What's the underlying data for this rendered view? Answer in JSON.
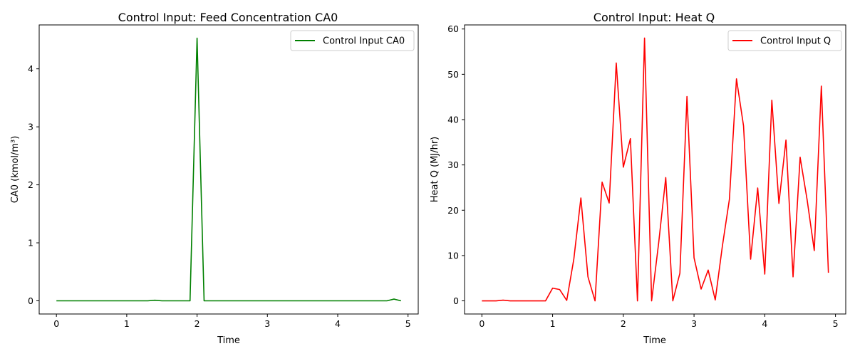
{
  "chart_data": [
    {
      "type": "line",
      "title": "Control Input: Feed Concentration CA0",
      "xlabel": "Time",
      "ylabel": "CA0 (kmol/m³)",
      "xlim": [
        -0.245,
        5.145
      ],
      "ylim": [
        -0.227,
        4.757
      ],
      "xticks": [
        "0",
        "1",
        "2",
        "3",
        "4",
        "5"
      ],
      "yticks": [
        "0",
        "1",
        "2",
        "3",
        "4"
      ],
      "legend": "top-right",
      "grid": false,
      "series": [
        {
          "name": "Control Input CA0",
          "color": "#008000",
          "x": [
            0,
            0.1,
            0.2,
            0.3,
            0.4,
            0.5,
            0.6,
            0.7,
            0.8,
            0.9,
            1.0,
            1.1,
            1.2,
            1.3,
            1.4,
            1.5,
            1.6,
            1.7,
            1.8,
            1.9,
            2.0,
            2.1,
            2.2,
            2.3,
            2.4,
            2.5,
            2.6,
            2.7,
            2.8,
            2.9,
            3.0,
            3.1,
            3.2,
            3.3,
            3.4,
            3.5,
            3.6,
            3.7,
            3.8,
            3.9,
            4.0,
            4.1,
            4.2,
            4.3,
            4.4,
            4.5,
            4.6,
            4.7,
            4.8,
            4.9
          ],
          "values": [
            0,
            0,
            0,
            0,
            0,
            0,
            0,
            0,
            0,
            0,
            0,
            0,
            0,
            0,
            0.01,
            0,
            0,
            0,
            0,
            0,
            4.53,
            0,
            0,
            0,
            0,
            0,
            0,
            0,
            0,
            0,
            0,
            0,
            0,
            0,
            0,
            0,
            0,
            0,
            0,
            0,
            0,
            0,
            0,
            0,
            0,
            0,
            0,
            0,
            0.03,
            0
          ]
        }
      ]
    },
    {
      "type": "line",
      "title": "Control Input: Heat Q",
      "xlabel": "Time",
      "ylabel": "Heat Q (MJ/hr)",
      "xlim": [
        -0.245,
        5.145
      ],
      "ylim": [
        -2.9,
        60.9
      ],
      "xticks": [
        "0",
        "1",
        "2",
        "3",
        "4",
        "5"
      ],
      "yticks": [
        "0",
        "10",
        "20",
        "30",
        "40",
        "50",
        "60"
      ],
      "legend": "top-right",
      "grid": false,
      "series": [
        {
          "name": "Control Input Q",
          "color": "#ff0000",
          "x": [
            0,
            0.1,
            0.2,
            0.3,
            0.4,
            0.5,
            0.6,
            0.7,
            0.8,
            0.9,
            1.0,
            1.1,
            1.2,
            1.3,
            1.4,
            1.5,
            1.6,
            1.7,
            1.8,
            1.9,
            2.0,
            2.1,
            2.2,
            2.3,
            2.4,
            2.5,
            2.6,
            2.7,
            2.8,
            2.9,
            3.0,
            3.1,
            3.2,
            3.3,
            3.4,
            3.5,
            3.6,
            3.7,
            3.8,
            3.9,
            4.0,
            4.1,
            4.2,
            4.3,
            4.4,
            4.5,
            4.6,
            4.7,
            4.8,
            4.9
          ],
          "values": [
            0,
            0,
            0,
            0.15,
            0,
            0,
            0,
            0,
            0,
            0,
            2.8,
            2.5,
            0.1,
            9.2,
            22.7,
            5.3,
            0,
            26.2,
            21.6,
            52.5,
            29.5,
            35.8,
            0,
            58,
            0,
            12.8,
            27.2,
            0,
            6.1,
            45.1,
            9.5,
            2.6,
            6.8,
            0.2,
            12,
            22.4,
            49,
            38.6,
            9.2,
            24.9,
            5.9,
            44.3,
            21.5,
            35.5,
            5.3,
            31.7,
            22.2,
            11.1,
            47.4,
            6.2
          ]
        }
      ]
    }
  ]
}
